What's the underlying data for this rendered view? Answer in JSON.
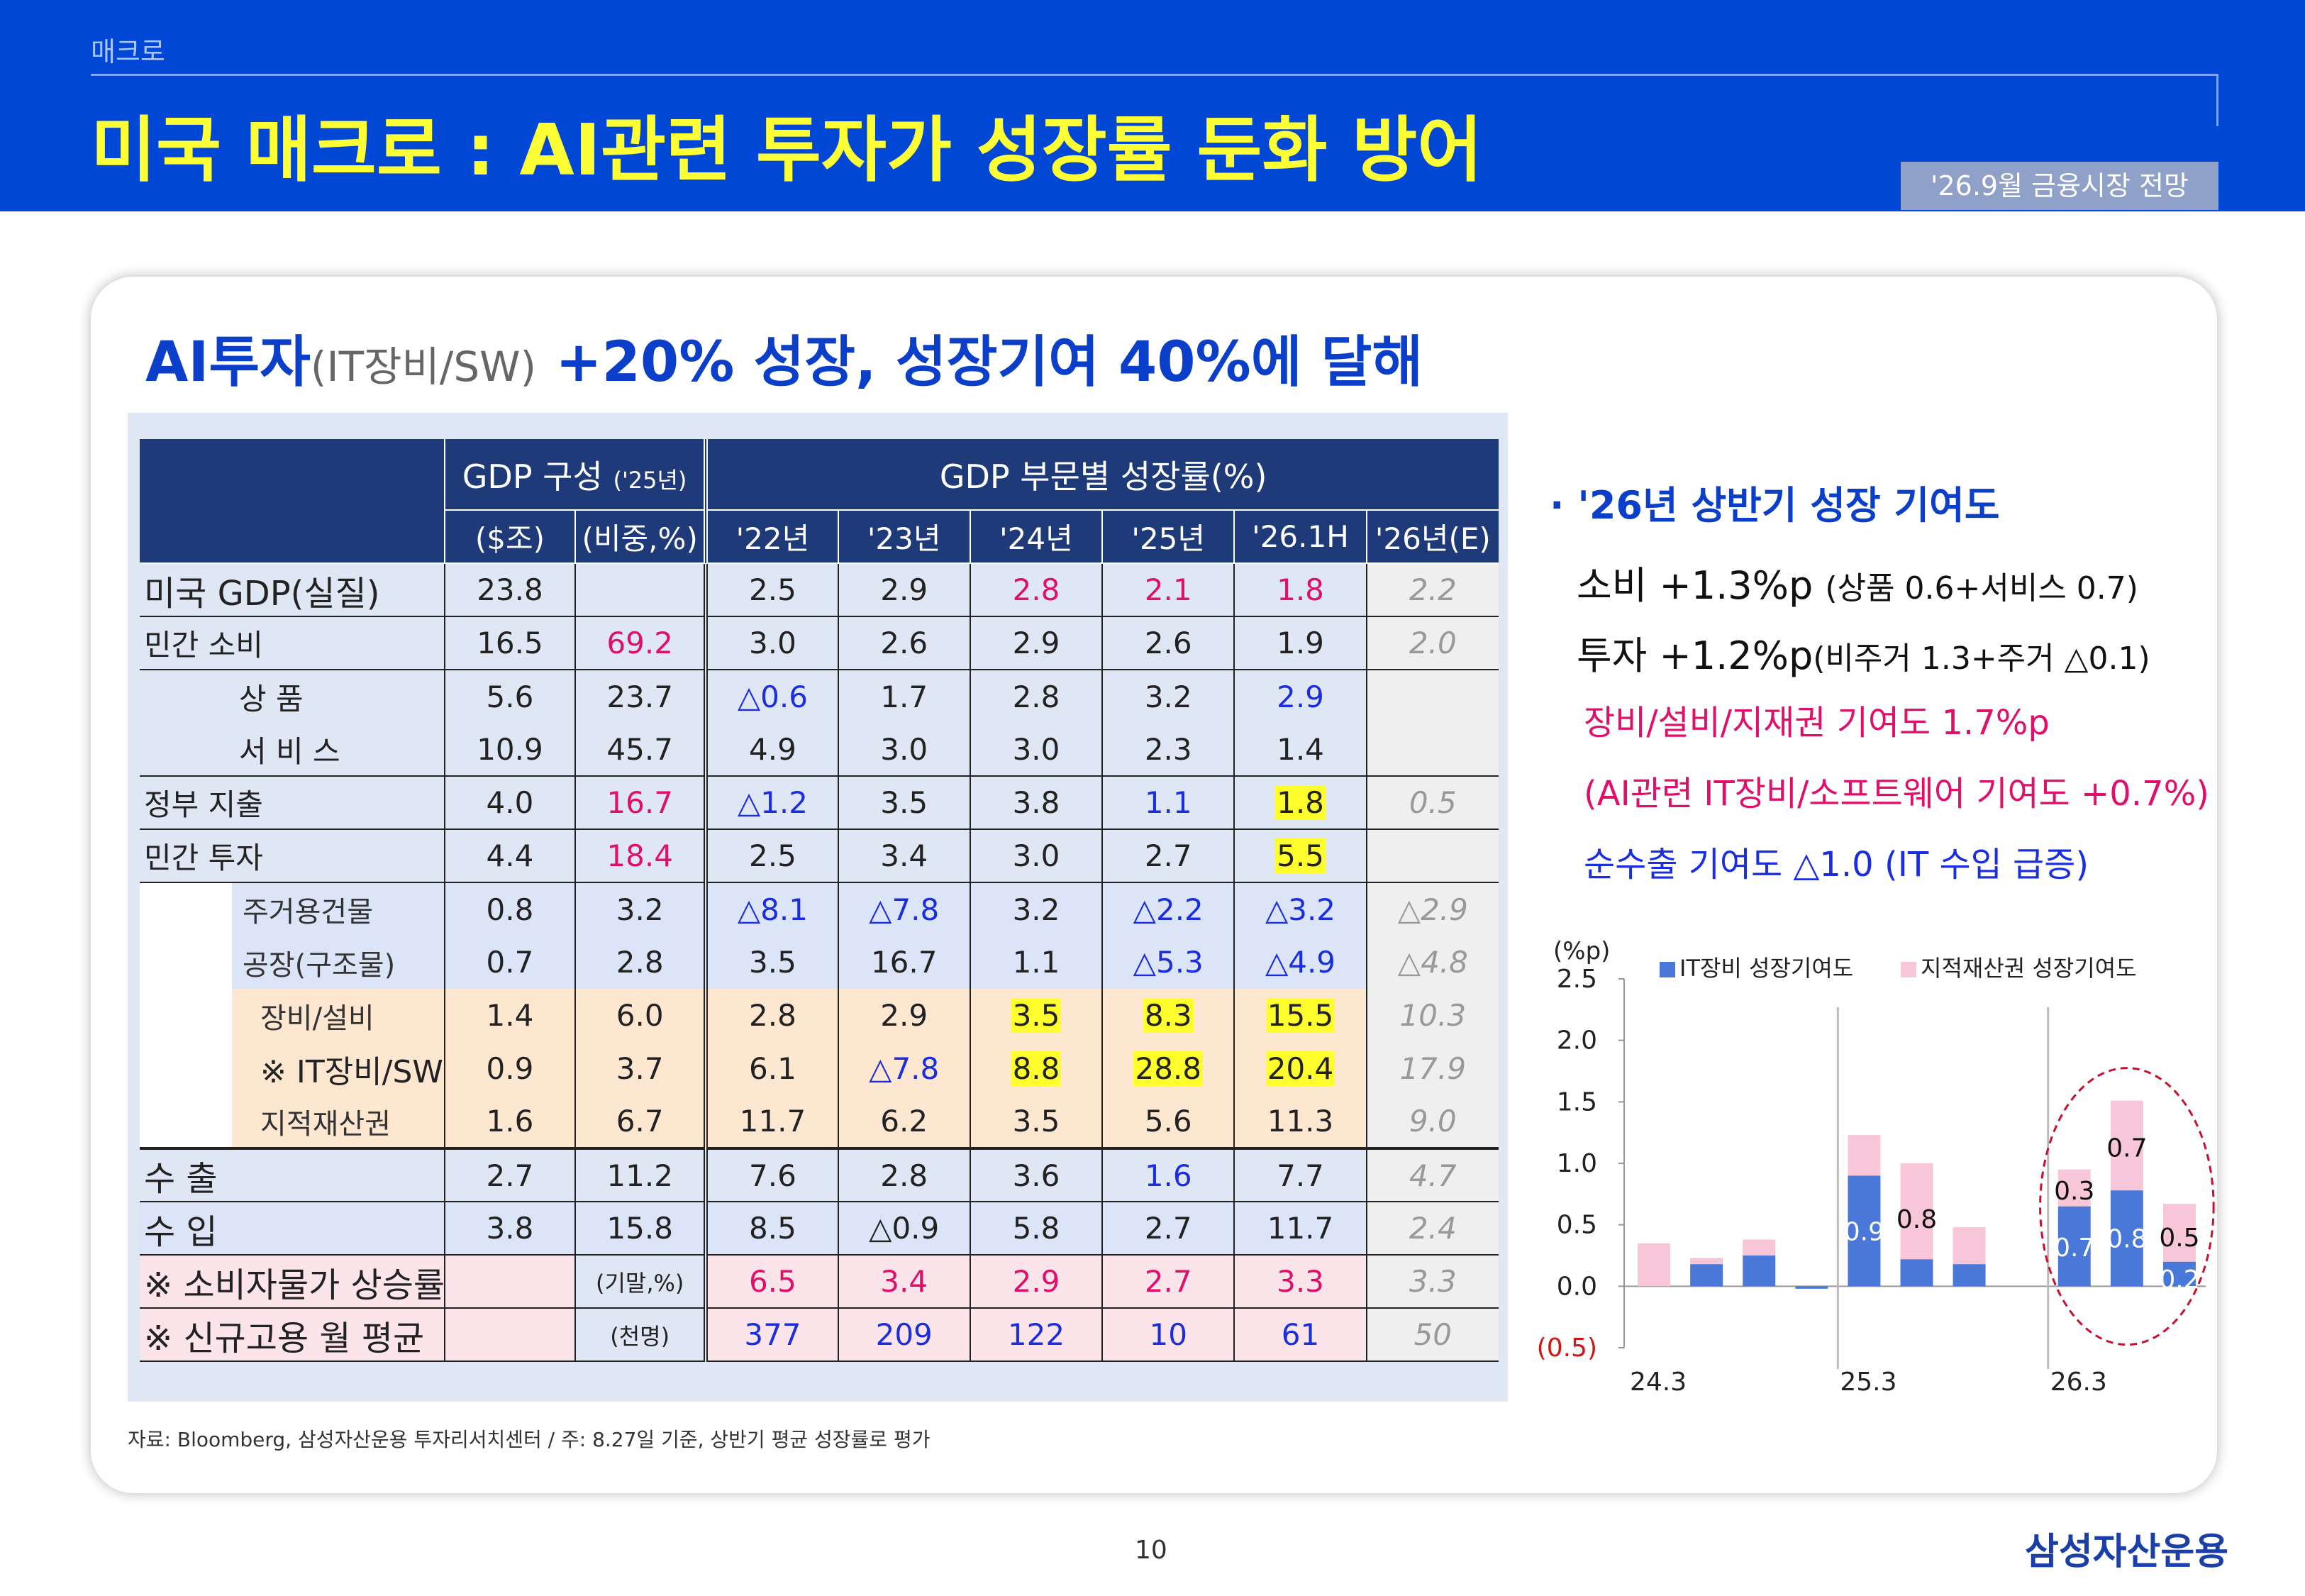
{
  "header": {
    "section": "매크로",
    "title": "미국 매크로 : AI관련 투자가 성장률 둔화 방어",
    "tag": "'26.9월 금융시장 전망"
  },
  "card": {
    "title_main": "AI투자",
    "title_sub": "(IT장비/SW)",
    "title_rest": " +20% 성장, 성장기여 40%에 달해"
  },
  "table": {
    "group_headers": {
      "composition": "GDP 구성",
      "composition_year": "('25년)",
      "growth": "GDP 부문별 성장률(%)"
    },
    "col_headers": [
      "($조)",
      "(비중,%)",
      "'22년",
      "'23년",
      "'24년",
      "'25년",
      "'26.1H",
      "'26년(E)"
    ],
    "rows": [
      {
        "label": "미국 GDP(실질)",
        "cells": [
          "23.8",
          "",
          "2.5",
          "2.9",
          "2.8",
          "2.1",
          "1.8",
          "2.2"
        ]
      },
      {
        "label": "민간 소비",
        "cells": [
          "16.5",
          "69.2",
          "3.0",
          "2.6",
          "2.9",
          "2.6",
          "1.9",
          "2.0"
        ]
      },
      {
        "label": "상      품",
        "cells": [
          "5.6",
          "23.7",
          "△0.6",
          "1.7",
          "2.8",
          "3.2",
          "2.9",
          ""
        ]
      },
      {
        "label": "서   비   스",
        "cells": [
          "10.9",
          "45.7",
          "4.9",
          "3.0",
          "3.0",
          "2.3",
          "1.4",
          ""
        ]
      },
      {
        "label": "정부 지출",
        "cells": [
          "4.0",
          "16.7",
          "△1.2",
          "3.5",
          "3.8",
          "1.1",
          "1.8",
          "0.5"
        ]
      },
      {
        "label": "민간 투자",
        "cells": [
          "4.4",
          "18.4",
          "2.5",
          "3.4",
          "3.0",
          "2.7",
          "5.5",
          ""
        ]
      },
      {
        "label": "주거용건물",
        "cells": [
          "0.8",
          "3.2",
          "△8.1",
          "△7.8",
          "3.2",
          "△2.2",
          "△3.2",
          "△2.9"
        ]
      },
      {
        "label": "공장(구조물)",
        "cells": [
          "0.7",
          "2.8",
          "3.5",
          "16.7",
          "1.1",
          "△5.3",
          "△4.9",
          "△4.8"
        ]
      },
      {
        "label": "장비/설비",
        "cells": [
          "1.4",
          "6.0",
          "2.8",
          "2.9",
          "3.5",
          "8.3",
          "15.5",
          "10.3"
        ]
      },
      {
        "label": "※ IT장비/SW",
        "cells": [
          "0.9",
          "3.7",
          "6.1",
          "△7.8",
          "8.8",
          "28.8",
          "20.4",
          "17.9"
        ]
      },
      {
        "label": "지적재산권",
        "cells": [
          "1.6",
          "6.7",
          "11.7",
          "6.2",
          "3.5",
          "5.6",
          "11.3",
          "9.0"
        ]
      },
      {
        "label": "수   출",
        "cells": [
          "2.7",
          "11.2",
          "7.6",
          "2.8",
          "3.6",
          "1.6",
          "7.7",
          "4.7"
        ]
      },
      {
        "label": "수   입",
        "cells": [
          "3.8",
          "15.8",
          "8.5",
          "△0.9",
          "5.8",
          "2.7",
          "11.7",
          "2.4"
        ]
      },
      {
        "label": "※ 소비자물가 상승률",
        "cells": [
          "",
          "(기말,%)",
          "6.5",
          "3.4",
          "2.9",
          "2.7",
          "3.3",
          "3.3"
        ]
      },
      {
        "label": "※ 신규고용 월 평균",
        "cells": [
          "",
          "(천명)",
          "377",
          "209",
          "122",
          "10",
          "61",
          "50"
        ]
      }
    ]
  },
  "source": "자료: Bloomberg, 삼성자산운용 투자리서치센터 / 주: 8.27일 기준, 상반기 평균 성장률로 평가",
  "bullets": {
    "head": "· '26년 상반기 성장 기여도",
    "consumption": "소비 +1.3%p",
    "consumption_detail": "(상품 0.6+서비스 0.7)",
    "investment": "투자 +1.2%p",
    "investment_detail": "(비주거 1.3+주거 △0.1)",
    "equipment": "장비/설비/지재권 기여도 1.7%p",
    "ai": "(AI관련 IT장비/소프트웨어 기여도 +0.7%)",
    "net_exports": "순수출 기여도 △1.0 (IT 수입 급증)"
  },
  "chart_data": {
    "type": "bar",
    "stacked": true,
    "ylabel": "(%p)",
    "ylim": [
      -0.5,
      2.5
    ],
    "yticks": [
      "(0.5)",
      "0.0",
      "0.5",
      "1.0",
      "1.5",
      "2.0",
      "2.5"
    ],
    "x": [
      "24.3",
      "24.6",
      "24.9",
      "24.12",
      "25.3",
      "25.6",
      "25.9",
      "25.12",
      "26.3",
      "26.6",
      "26.9"
    ],
    "x_tick_labels": [
      "24.3",
      "25.3",
      "26.3"
    ],
    "series": [
      {
        "name": "IT장비 성장기여도",
        "color": "#4a78d8",
        "values": [
          0.0,
          0.18,
          0.25,
          -0.02,
          0.9,
          0.22,
          0.18,
          0.0,
          0.65,
          0.78,
          0.2
        ]
      },
      {
        "name": "지적재산권 성장기여도",
        "color": "#f7c6d8",
        "values": [
          0.35,
          0.05,
          0.13,
          0.0,
          0.33,
          0.78,
          0.3,
          0.0,
          0.3,
          0.73,
          0.47
        ]
      }
    ],
    "annotations": [
      {
        "text": "0.9",
        "color": "white"
      },
      {
        "text": "0.8",
        "color": "black"
      },
      {
        "text": "0.3",
        "color": "black"
      },
      {
        "text": "0.7",
        "color": "black"
      },
      {
        "text": "0.7",
        "color": "white"
      },
      {
        "text": "0.8",
        "color": "white"
      },
      {
        "text": "0.5",
        "color": "black"
      },
      {
        "text": "0.2",
        "color": "white"
      }
    ],
    "grid": false,
    "legend": "top"
  },
  "footer": {
    "page": "10",
    "logo": "삼성자산운용"
  }
}
